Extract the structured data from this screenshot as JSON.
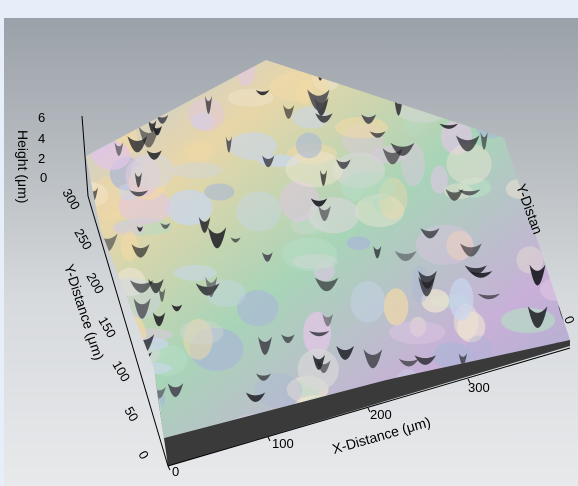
{
  "figure": {
    "x_axis": {
      "title": "X-Distance (μm)",
      "ticks": [
        "0",
        "100",
        "200",
        "300"
      ]
    },
    "y_axis": {
      "title": "Y-Distance (μm)",
      "ticks": [
        "0",
        "50",
        "100",
        "150",
        "200",
        "250",
        "300"
      ]
    },
    "z_axis": {
      "title": "Height (μm)",
      "ticks": [
        "0",
        "2",
        "4",
        "6"
      ]
    },
    "y_axis_right_title": "Y-Distan",
    "right_edge_tick": "0",
    "colors": {
      "background_top": "#9aa1a8",
      "background_bottom": "#e7e9eb",
      "frame": "#e6eef9",
      "base": "#3a3a3a"
    }
  }
}
